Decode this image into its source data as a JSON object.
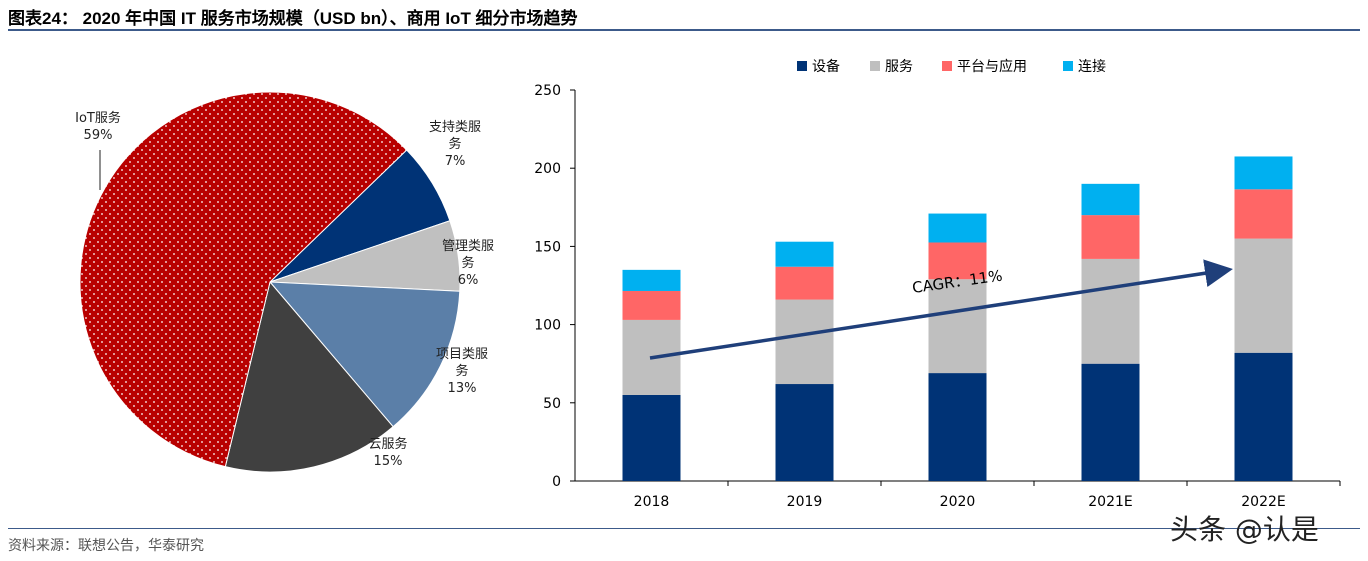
{
  "title": "图表24：  2020 年中国 IT 服务市场规模（USD bn）、商用 IoT 细分市场趋势",
  "source": "资料来源：联想公告，华泰研究",
  "watermark": "头条 @认是",
  "chart_data": [
    {
      "type": "pie",
      "slices": [
        {
          "label": "支持类服务",
          "value": 7,
          "pct": "7%",
          "color": "#003376"
        },
        {
          "label": "管理类服务",
          "value": 6,
          "pct": "6%",
          "color": "#c0c0c0"
        },
        {
          "label": "项目类服务",
          "value": 13,
          "pct": "13%",
          "color": "#5b7fa8"
        },
        {
          "label": "云服务",
          "value": 15,
          "pct": "15%",
          "color": "#404040"
        },
        {
          "label": "IoT服务",
          "value": 59,
          "pct": "59%",
          "color": "#b80000",
          "pattern": "white-dots"
        }
      ]
    },
    {
      "type": "bar",
      "stacked": true,
      "categories": [
        "2018",
        "2019",
        "2020",
        "2021E",
        "2022E"
      ],
      "series": [
        {
          "name": "设备",
          "color": "#003376",
          "values": [
            55,
            62,
            69,
            75,
            82
          ]
        },
        {
          "name": "服务",
          "color": "#bfbfbf",
          "values": [
            48,
            54,
            60,
            67,
            73
          ]
        },
        {
          "name": "平台与应用",
          "color": "#ff6666",
          "values": [
            18.5,
            21,
            23.5,
            28,
            31.5
          ]
        },
        {
          "name": "连接",
          "color": "#00b0f0",
          "values": [
            13.5,
            16,
            18.5,
            20,
            21
          ]
        }
      ],
      "ylim": [
        0,
        250
      ],
      "yticks": [
        0,
        50,
        100,
        150,
        200,
        250
      ],
      "legend": "top",
      "annotation": "CAGR：11%"
    }
  ]
}
